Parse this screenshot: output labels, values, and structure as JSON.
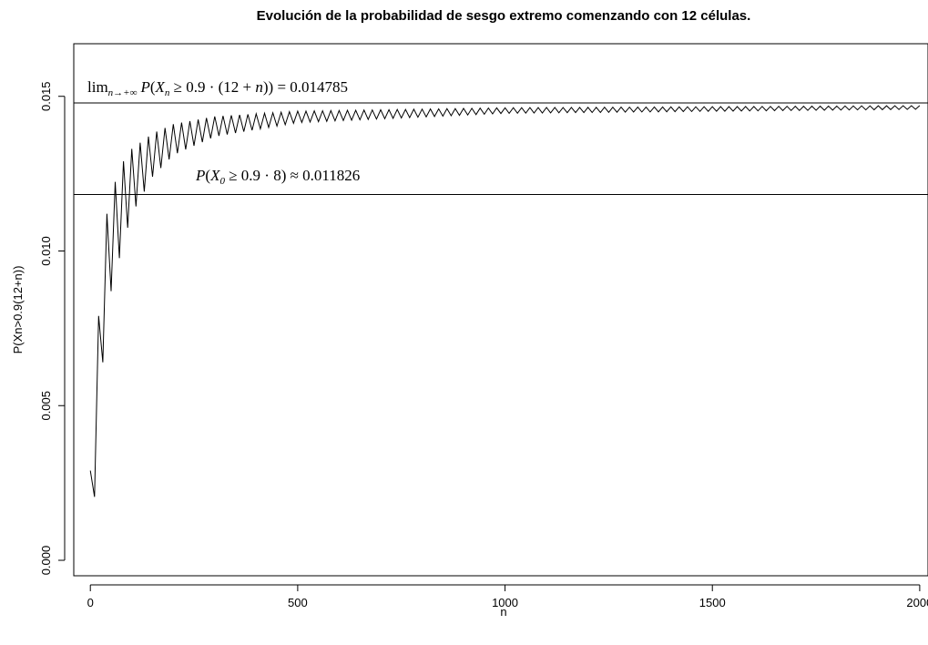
{
  "chart_data": {
    "type": "line",
    "title": "Evolución de la probabilidad de sesgo extremo comenzando con 12 células.",
    "xlabel": "n",
    "ylabel": "P(Xn>0.9(12+n))",
    "xlim": [
      -40,
      2020
    ],
    "ylim": [
      -0.0005,
      0.0167
    ],
    "x_ticks": [
      0,
      500,
      1000,
      1500,
      2000
    ],
    "x_tick_labels": [
      "0",
      "500",
      "1000",
      "1500",
      "2000"
    ],
    "y_ticks": [
      0.0,
      0.005,
      0.01,
      0.015
    ],
    "y_tick_labels": [
      "0.000",
      "0.005",
      "0.010",
      "0.015"
    ],
    "grid": false,
    "series": [
      {
        "x_start": 0,
        "x_end": 2000,
        "x_step": 10,
        "start_value": 0.0029,
        "min_value": 0.00205,
        "upper_envelope": [
          [
            0,
            0.0029
          ],
          [
            20,
            0.0079
          ],
          [
            30,
            0.0101
          ],
          [
            40,
            0.0112
          ],
          [
            50,
            0.0119
          ],
          [
            80,
            0.0129
          ],
          [
            100,
            0.0133
          ],
          [
            150,
            0.0138
          ],
          [
            200,
            0.0141
          ],
          [
            300,
            0.01435
          ],
          [
            500,
            0.01452
          ],
          [
            1000,
            0.01463
          ],
          [
            2000,
            0.0147
          ]
        ],
        "lower_envelope": [
          [
            0,
            0.0029
          ],
          [
            10,
            0.00205
          ],
          [
            20,
            0.0045
          ],
          [
            30,
            0.0064
          ],
          [
            40,
            0.0077
          ],
          [
            50,
            0.0087
          ],
          [
            80,
            0.0103
          ],
          [
            100,
            0.0112
          ],
          [
            150,
            0.0124
          ],
          [
            200,
            0.0131
          ],
          [
            300,
            0.0137
          ],
          [
            500,
            0.01415
          ],
          [
            1000,
            0.01445
          ],
          [
            2000,
            0.01458
          ]
        ]
      }
    ],
    "reference_lines": [
      {
        "y": 0.014785,
        "value_text": "0.014785"
      },
      {
        "y": 0.011826,
        "value_text": "0.011826"
      }
    ]
  },
  "annotations": {
    "limit": {
      "lim": "lim",
      "lim_sub": "n→+∞",
      "P": "P",
      "open": "(",
      "X": "X",
      "X_sub": "n",
      "mid": " ≥ 0.9 · (12 + ",
      "n": "n",
      "close": ")) = 0.014785"
    },
    "initial": {
      "P": "P",
      "open": "(",
      "X": "X",
      "X_sub": "0",
      "mid": " ≥ 0.9 · 8) ≈ 0.011826"
    }
  },
  "colors": {
    "line": "#000000",
    "background": "#ffffff"
  }
}
